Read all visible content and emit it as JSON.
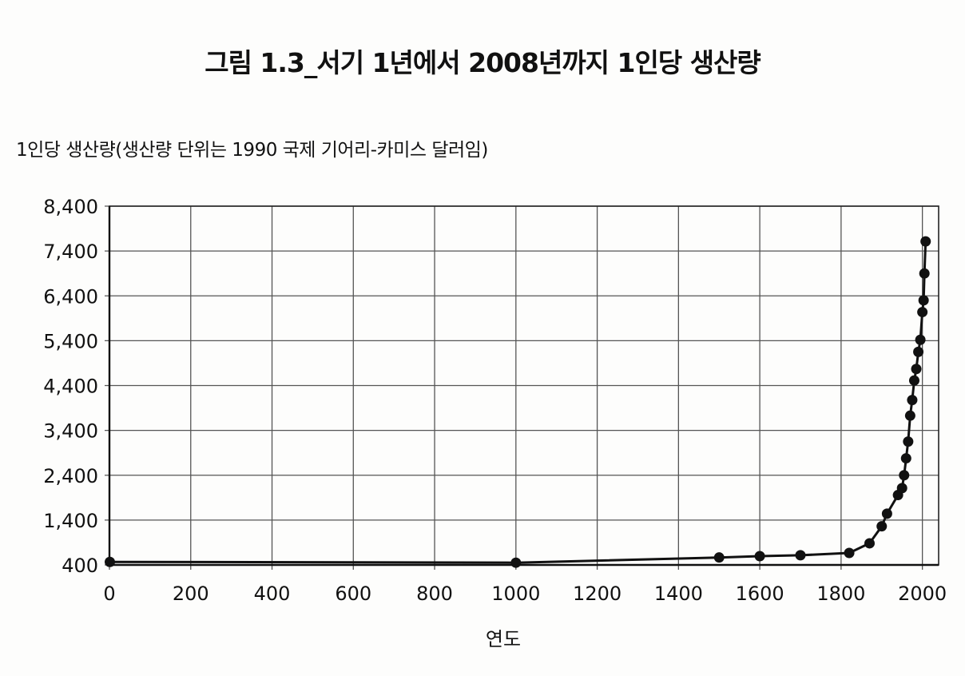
{
  "chart_data": {
    "type": "line",
    "title": "그림 1.3_서기 1년에서 2008년까지 1인당 생산량",
    "ylabel": "1인당 생산량(생산량 단위는 1990 국제 기어리-카미스 달러임)",
    "xlabel": "연도",
    "xlim": [
      0,
      2040
    ],
    "ylim": [
      400,
      8400
    ],
    "x_ticks": [
      "0",
      "200",
      "400",
      "600",
      "800",
      "1000",
      "1200",
      "1400",
      "1600",
      "1800",
      "2000"
    ],
    "y_ticks": [
      "8,400",
      "7,400",
      "6,400",
      "5,400",
      "4,400",
      "3,400",
      "2,400",
      "1,400",
      "400"
    ],
    "grid": true,
    "series_color": "#111111",
    "series": [
      {
        "x": [
          1,
          1000,
          1500,
          1600,
          1700,
          1820,
          1870,
          1900,
          1913,
          1940,
          1950,
          1955,
          1960,
          1965,
          1970,
          1975,
          1980,
          1985,
          1990,
          1995,
          2000,
          2003,
          2005,
          2008
        ],
        "values": [
          467,
          450,
          566,
          596,
          616,
          667,
          882,
          1262,
          1543,
          1958,
          2113,
          2400,
          2777,
          3150,
          3729,
          4077,
          4512,
          4770,
          5150,
          5420,
          6038,
          6300,
          6900,
          7614
        ]
      }
    ]
  }
}
